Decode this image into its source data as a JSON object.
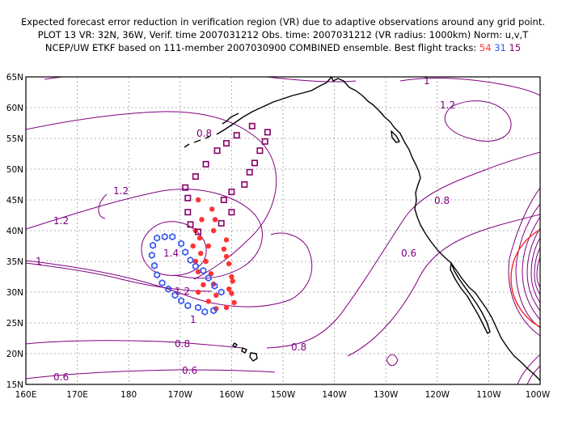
{
  "header": {
    "line1": "Expected forecast error reduction in verification region (VR) due to adaptive observations around any grid point.",
    "line2": "PLOT 13 VR: 32N, 36W, Verif. time 2007031212 Obs. time: 2007031212 (VR radius: 1000km) Norm: u,v,T",
    "line3_prefix": "NCEP/UW ETKF based on 111-member 2007030900 COMBINED ensemble.  Best flight tracks: ",
    "track_labels": [
      "54",
      "31",
      "15"
    ]
  },
  "colors": {
    "contour": "#800080",
    "track_54": "#ff3333",
    "track_31": "#3355ee",
    "track_15": "#880066",
    "verification_circle": "#ff2020",
    "coastline": "#000000",
    "grid": "#999999"
  },
  "map": {
    "lat_labels": [
      "65N",
      "60N",
      "55N",
      "50N",
      "45N",
      "40N",
      "35N",
      "30N",
      "25N",
      "20N",
      "15N"
    ],
    "lon_labels": [
      "160E",
      "170E",
      "180",
      "170W",
      "160W",
      "150W",
      "140W",
      "130W",
      "120W",
      "110W",
      "100W"
    ],
    "contour_labels": [
      "1",
      "1.2",
      "0.8",
      "1.2",
      "1.2",
      "1.4",
      "1",
      "1.2",
      "1",
      "0.8",
      "0.8",
      "0.6",
      "0.6",
      "0.6",
      "0.8"
    ]
  },
  "tracks": {
    "track_54": {
      "label": "54",
      "points": [
        [
          -166.5,
          45.0
        ],
        [
          -163.8,
          43.5
        ],
        [
          -165.8,
          41.8
        ],
        [
          -163.2,
          41.8
        ],
        [
          -167.0,
          40.0
        ],
        [
          -163.5,
          40.0
        ],
        [
          -166.2,
          38.8
        ],
        [
          -161.0,
          38.5
        ],
        [
          -167.5,
          37.5
        ],
        [
          -164.5,
          37.5
        ],
        [
          -161.5,
          37.0
        ],
        [
          -166.0,
          36.3
        ],
        [
          -161.0,
          35.8
        ],
        [
          -167.0,
          35.0
        ],
        [
          -165.0,
          35.0
        ],
        [
          -160.5,
          34.6
        ],
        [
          -166.5,
          33.3
        ],
        [
          -164.0,
          33.0
        ],
        [
          -160.0,
          32.5
        ],
        [
          -165.5,
          31.2
        ],
        [
          -163.5,
          31.3
        ],
        [
          -159.8,
          31.8
        ],
        [
          -166.5,
          30.0
        ],
        [
          -163.0,
          29.5
        ],
        [
          -160.0,
          29.8
        ],
        [
          -164.5,
          28.5
        ],
        [
          -159.5,
          28.3
        ],
        [
          -163.0,
          27.3
        ],
        [
          -161.0,
          27.5
        ],
        [
          -160.5,
          30.5
        ]
      ]
    },
    "track_31": {
      "label": "31",
      "points": [
        [
          -174.5,
          38.8
        ],
        [
          -173.0,
          39.0
        ],
        [
          -171.5,
          39.0
        ],
        [
          -175.3,
          37.6
        ],
        [
          -175.5,
          36.0
        ],
        [
          -169.8,
          37.9
        ],
        [
          -169.0,
          36.5
        ],
        [
          -175.0,
          34.3
        ],
        [
          -168.0,
          35.2
        ],
        [
          -174.5,
          32.8
        ],
        [
          -167.0,
          34.2
        ],
        [
          -173.5,
          31.5
        ],
        [
          -165.5,
          33.5
        ],
        [
          -172.3,
          30.5
        ],
        [
          -164.5,
          32.3
        ],
        [
          -171.0,
          29.5
        ],
        [
          -163.3,
          31.0
        ],
        [
          -169.8,
          28.6
        ],
        [
          -162.0,
          30.0
        ],
        [
          -168.5,
          27.8
        ],
        [
          -166.5,
          27.5
        ],
        [
          -165.2,
          26.8
        ],
        [
          -163.5,
          27.0
        ]
      ]
    },
    "track_15": {
      "label": "15",
      "points": [
        [
          -156.0,
          57.0
        ],
        [
          -153.0,
          56.0
        ],
        [
          -159.0,
          55.5
        ],
        [
          -161.0,
          54.2
        ],
        [
          -153.5,
          54.5
        ],
        [
          -162.8,
          53.0
        ],
        [
          -154.5,
          53.0
        ],
        [
          -155.5,
          51.0
        ],
        [
          -165.0,
          50.8
        ],
        [
          -156.5,
          49.5
        ],
        [
          -167.0,
          48.8
        ],
        [
          -157.5,
          47.5
        ],
        [
          -169.0,
          47.0
        ],
        [
          -160.0,
          46.3
        ],
        [
          -161.5,
          45.0
        ],
        [
          -168.5,
          45.3
        ],
        [
          -168.5,
          43.0
        ],
        [
          -160.0,
          43.0
        ],
        [
          -168.0,
          41.0
        ],
        [
          -162.0,
          41.2
        ],
        [
          -166.5,
          39.8
        ]
      ]
    }
  }
}
